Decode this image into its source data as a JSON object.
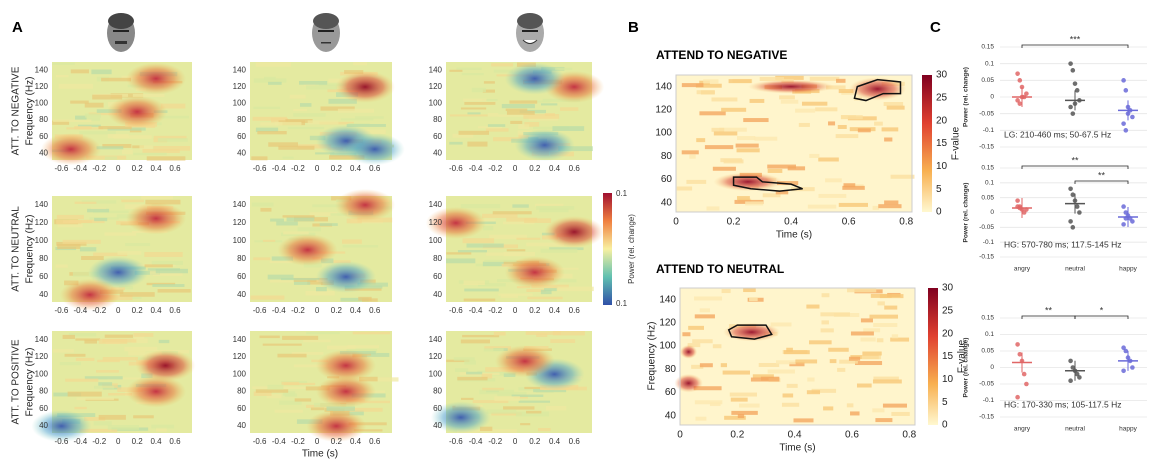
{
  "panel_a": {
    "label": "A",
    "row_labels": [
      "ATT. TO NEGATIVE",
      "ATT. TO NEUTRAL",
      "ATT. TO POSITIVE"
    ],
    "ylabel": "Frequency (Hz)",
    "xlabel": "Time (s)",
    "xlim": [
      -0.7,
      0.78
    ],
    "ylim": [
      32,
      150
    ],
    "xticks": [
      -0.6,
      -0.4,
      -0.2,
      0,
      0.2,
      0.4,
      0.6
    ],
    "yticks": [
      40,
      60,
      80,
      100,
      120,
      140
    ],
    "colorbar": {
      "label": "Power (rel. change)",
      "tick_labels": [
        "0.1",
        "0.1"
      ]
    }
  },
  "panel_b": {
    "label": "B",
    "xlabel": "Time (s)",
    "ylabel": "Frequency (Hz)",
    "xlim": [
      0,
      0.82
    ],
    "ylim": [
      32,
      150
    ],
    "xticks": [
      0,
      0.2,
      0.4,
      0.6,
      0.8
    ],
    "yticks": [
      40,
      60,
      80,
      100,
      120,
      140
    ],
    "colorbar": {
      "label": "F-value",
      "lim": [
        0,
        30
      ],
      "ticks": [
        0,
        5,
        10,
        15,
        20,
        25,
        30
      ]
    },
    "plots": [
      {
        "title": "ATTEND TO NEGATIVE"
      },
      {
        "title": "ATTEND TO NEUTRAL"
      }
    ]
  },
  "panel_c": {
    "label": "C",
    "ylabel": "Power (rel. change)",
    "categories": [
      "angry",
      "neutral",
      "happy"
    ],
    "colors": [
      "#e06666",
      "#555555",
      "#6a6ad8"
    ],
    "ylim": [
      -0.15,
      0.15
    ],
    "yticks": [
      -0.15,
      -0.1,
      -0.05,
      0,
      0.05,
      0.1,
      0.15
    ],
    "plots": [
      {
        "annotation": "LG: 210-460 ms; 50-67.5 Hz",
        "show_categories": false,
        "points": [
          [
            0.07,
            0.05,
            0.03,
            0.0,
            0.01,
            -0.01,
            -0.02,
            0.0
          ],
          [
            0.1,
            0.08,
            0.04,
            0.02,
            -0.01,
            -0.03,
            -0.05,
            -0.02
          ],
          [
            0.05,
            0.02,
            -0.03,
            -0.04,
            -0.06,
            -0.08,
            -0.1,
            -0.05
          ]
        ],
        "means": [
          0.0,
          -0.01,
          -0.04
        ],
        "significance": [
          {
            "label": "***",
            "pair": [
              "angry",
              "happy"
            ]
          }
        ]
      },
      {
        "annotation": "HG: 570-780 ms; 117.5-145 Hz",
        "show_categories": true,
        "points": [
          [
            0.04,
            0.02,
            0.01,
            0.0,
            0.01,
            0.02,
            0.015
          ],
          [
            0.08,
            0.06,
            0.04,
            0.02,
            0.0,
            -0.03,
            -0.05
          ],
          [
            0.02,
            0.0,
            -0.01,
            -0.02,
            -0.03,
            -0.04,
            -0.02
          ]
        ],
        "means": [
          0.015,
          0.03,
          -0.015
        ],
        "significance": [
          {
            "label": "**",
            "pair": [
              "angry",
              "happy"
            ]
          },
          {
            "label": "**",
            "pair": [
              "neutral",
              "happy"
            ]
          }
        ]
      },
      {
        "annotation": "HG: 170-330 ms; 105-117.5 Hz",
        "show_categories": true,
        "points": [
          [
            0.07,
            0.04,
            0.02,
            -0.02,
            -0.05,
            -0.09
          ],
          [
            0.02,
            0.0,
            -0.01,
            -0.02,
            -0.03,
            -0.04
          ],
          [
            0.06,
            0.05,
            0.03,
            0.02,
            0.0,
            -0.01
          ]
        ],
        "means": [
          0.015,
          -0.01,
          0.02
        ],
        "significance": [
          {
            "label": "**",
            "pair": [
              "angry",
              "neutral"
            ]
          },
          {
            "label": "*",
            "pair": [
              "neutral",
              "happy"
            ]
          }
        ]
      }
    ]
  }
}
